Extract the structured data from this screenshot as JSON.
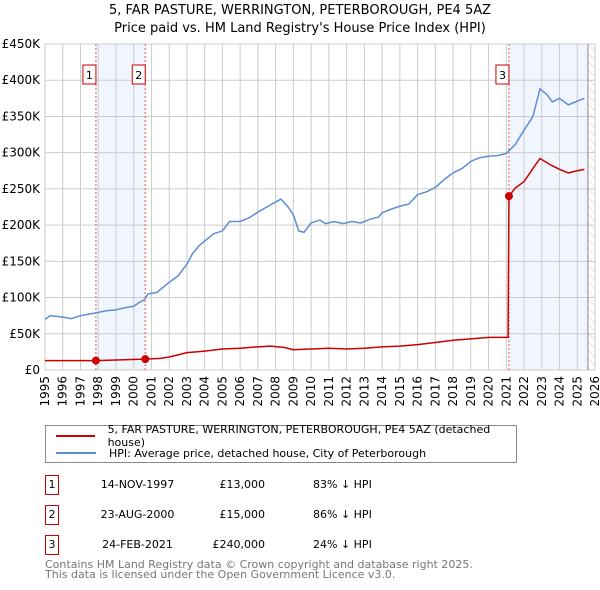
{
  "chart_data": {
    "type": "line",
    "title": "5, FAR PASTURE, WERRINGTON, PETERBOROUGH, PE4 5AZ",
    "subtitle": "Price paid vs. HM Land Registry's House Price Index (HPI)",
    "xlim": [
      1995,
      2026
    ],
    "ylim": [
      0,
      450000
    ],
    "x_ticks": [
      "1995",
      "1996",
      "1997",
      "1998",
      "1999",
      "2000",
      "2001",
      "2002",
      "2003",
      "2004",
      "2005",
      "2006",
      "2007",
      "2008",
      "2009",
      "2010",
      "2011",
      "2012",
      "2013",
      "2014",
      "2015",
      "2016",
      "2017",
      "2018",
      "2019",
      "2020",
      "2021",
      "2022",
      "2023",
      "2024",
      "2025",
      "2026"
    ],
    "y_ticks": [
      {
        "v": 0,
        "label": "£0"
      },
      {
        "v": 50000,
        "label": "£50K"
      },
      {
        "v": 100000,
        "label": "£100K"
      },
      {
        "v": 150000,
        "label": "£150K"
      },
      {
        "v": 200000,
        "label": "£200K"
      },
      {
        "v": 250000,
        "label": "£250K"
      },
      {
        "v": 300000,
        "label": "£300K"
      },
      {
        "v": 350000,
        "label": "£350K"
      },
      {
        "v": 400000,
        "label": "£400K"
      },
      {
        "v": 450000,
        "label": "£450K"
      }
    ],
    "grid": true,
    "series": [
      {
        "name": "5, FAR PASTURE, WERRINGTON, PETERBOROUGH, PE4 5AZ (detached house)",
        "color": "#cc0000",
        "x": [
          1995,
          1997.87,
          2000.65,
          2001.5,
          2002,
          2003,
          2004,
          2005,
          2006,
          2007,
          2007.7,
          2008.5,
          2009,
          2010,
          2011,
          2012,
          2013,
          2014,
          2015,
          2016,
          2017,
          2018,
          2019,
          2020,
          2021.1,
          2021.15,
          2021.5,
          2022,
          2022.5,
          2022.9,
          2023.5,
          2024,
          2024.5,
          2025,
          2025.4
        ],
        "y": [
          13000,
          13000,
          15000,
          16000,
          18000,
          24000,
          26000,
          29000,
          30000,
          32000,
          33000,
          31000,
          28000,
          29000,
          30000,
          29000,
          30000,
          32000,
          33000,
          35000,
          38000,
          41000,
          43000,
          45000,
          45000,
          240000,
          251000,
          260000,
          278000,
          292000,
          283000,
          277000,
          272000,
          275000,
          277000
        ]
      },
      {
        "name": "HPI: Average price, detached house, City of Peterborough",
        "color": "#5b8ed6",
        "x": [
          1995,
          1995.3,
          1996,
          1996.5,
          1997,
          1997.9,
          1998.5,
          1999,
          1999.5,
          2000,
          2000.3,
          2000.6,
          2000.8,
          2001.3,
          2002,
          2002.5,
          2003,
          2003.3,
          2003.7,
          2004,
          2004.5,
          2005,
          2005.4,
          2006,
          2006.5,
          2007,
          2007.5,
          2008,
          2008.3,
          2008.7,
          2009,
          2009.3,
          2009.6,
          2010,
          2010.5,
          2010.8,
          2011.3,
          2011.8,
          2012.3,
          2012.8,
          2013.3,
          2013.8,
          2014,
          2014.5,
          2015,
          2015.5,
          2016,
          2016.5,
          2017,
          2017.5,
          2018,
          2018.5,
          2019,
          2019.5,
          2020,
          2020.5,
          2021,
          2021.5,
          2022,
          2022.5,
          2022.9,
          2023.3,
          2023.6,
          2024,
          2024.5,
          2025,
          2025.4
        ],
        "y": [
          70000,
          75000,
          73000,
          71000,
          75000,
          79000,
          82000,
          83000,
          86000,
          88000,
          93000,
          97000,
          105000,
          107000,
          121000,
          130000,
          146000,
          160000,
          172000,
          178000,
          188000,
          192000,
          205000,
          205000,
          210000,
          218000,
          225000,
          232000,
          236000,
          225000,
          214000,
          192000,
          190000,
          203000,
          207000,
          202000,
          205000,
          202000,
          205000,
          203000,
          208000,
          211000,
          217000,
          222000,
          226000,
          229000,
          242000,
          246000,
          252000,
          263000,
          272000,
          278000,
          288000,
          293000,
          295000,
          296000,
          299000,
          311000,
          331000,
          350000,
          388000,
          380000,
          370000,
          375000,
          366000,
          371000,
          375000
        ]
      }
    ],
    "sales": [
      {
        "num": "1",
        "x": 1997.87,
        "y": 13000,
        "date": "14-NOV-1997",
        "price": "£13,000",
        "hpi": "83% ↓ HPI"
      },
      {
        "num": "2",
        "x": 2000.65,
        "y": 15000,
        "date": "23-AUG-2000",
        "price": "£15,000",
        "hpi": "86% ↓ HPI"
      },
      {
        "num": "3",
        "x": 2021.15,
        "y": 240000,
        "date": "24-FEB-2021",
        "price": "£240,000",
        "hpi": "24% ↓ HPI"
      }
    ],
    "shaded_ranges": [
      [
        1997.87,
        2000.65
      ],
      [
        2021.15,
        2025.6
      ]
    ],
    "forecast_hatch_from": 2025.6,
    "legend_placement": "bottom"
  },
  "footer": {
    "line1": "Contains HM Land Registry data © Crown copyright and database right 2025.",
    "line2": "This data is licensed under the Open Government Licence v3.0."
  }
}
